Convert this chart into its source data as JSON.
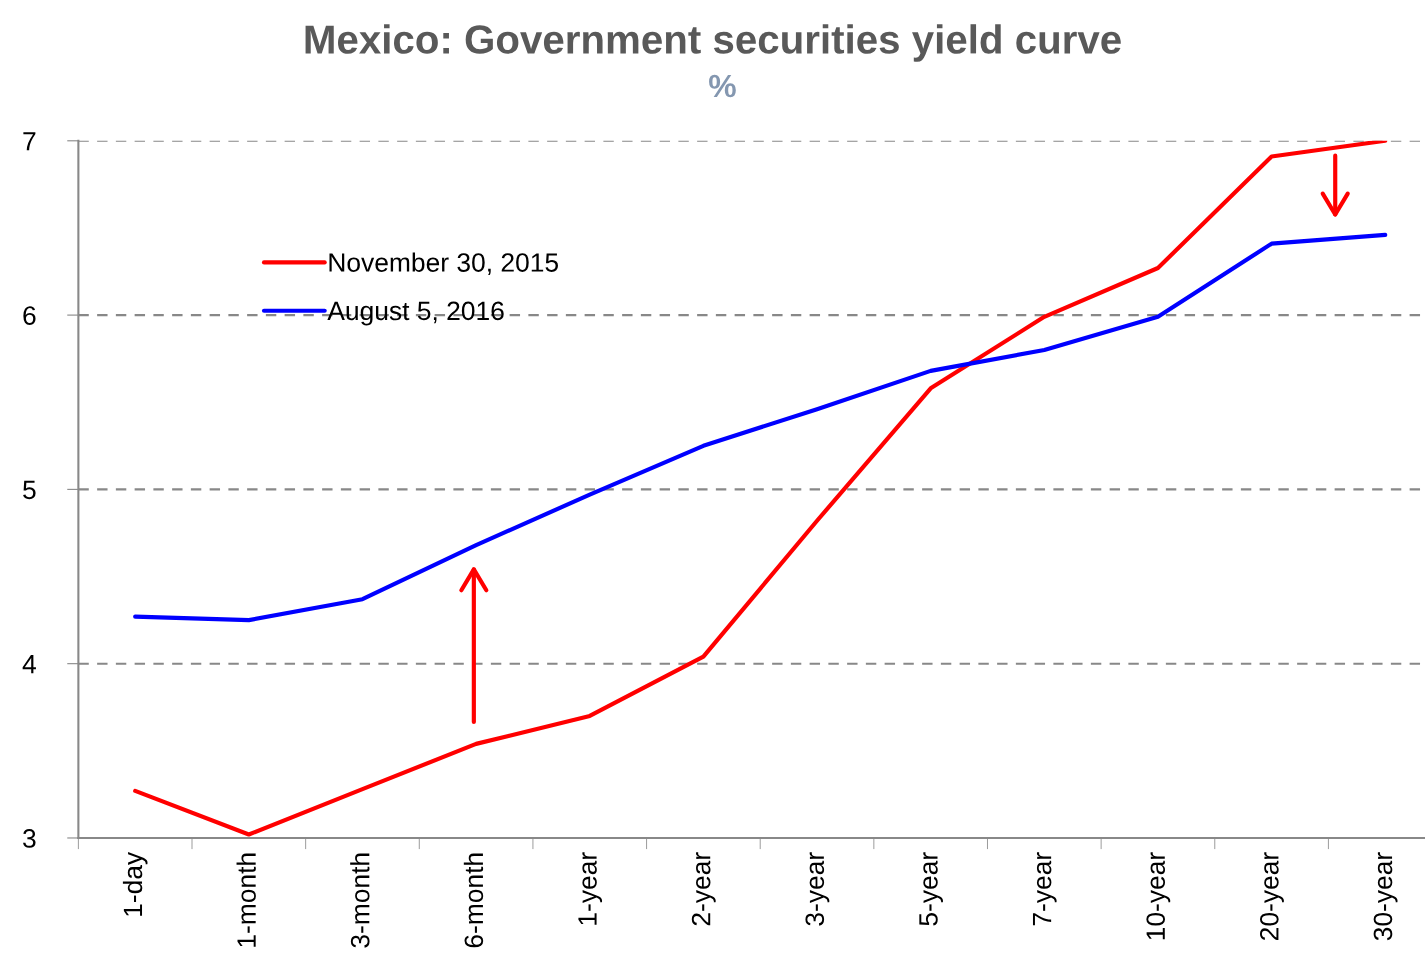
{
  "chart_data": {
    "type": "line",
    "title": "Mexico: Government securities yield curve",
    "subtitle": "%",
    "categories": [
      "1-day",
      "1-month",
      "3-month",
      "6-month",
      "1-year",
      "2-year",
      "3-year",
      "5-year",
      "7-year",
      "10-year",
      "20-year",
      "30-year"
    ],
    "series": [
      {
        "name": "November 30, 2015",
        "color": "#ff0000",
        "values": [
          3.27,
          3.02,
          3.28,
          3.54,
          3.7,
          4.04,
          4.82,
          5.58,
          5.99,
          6.27,
          6.91,
          7.0
        ]
      },
      {
        "name": "August 5, 2016",
        "color": "#0000ff",
        "values": [
          4.27,
          4.25,
          4.37,
          4.68,
          4.97,
          5.25,
          5.46,
          5.68,
          5.8,
          5.99,
          6.41,
          6.46
        ]
      }
    ],
    "ylim": [
      3,
      7
    ],
    "yticks": [
      3,
      4,
      5,
      6,
      7
    ],
    "grid": "y",
    "legend": "top left",
    "marker": "none",
    "line_style": "solid"
  }
}
